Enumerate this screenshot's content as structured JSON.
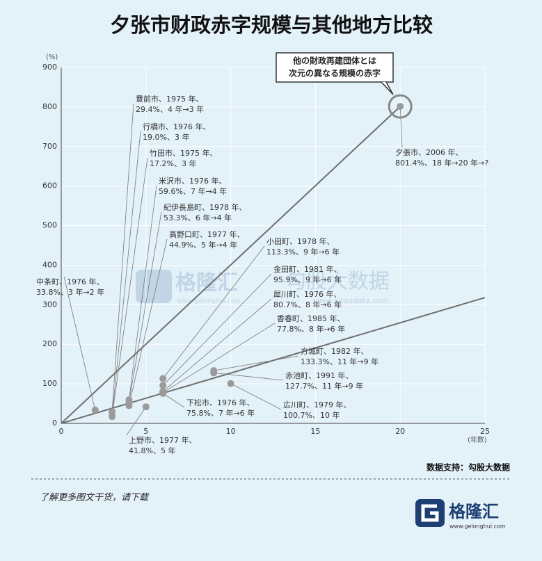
{
  "chart_data": {
    "type": "scatter",
    "title": "夕张市财政赤字规模与其他地方比较",
    "y_label": "(%)",
    "x_label": "(年数)",
    "xlim": [
      0,
      25
    ],
    "ylim": [
      0,
      900
    ],
    "xticks": [
      0,
      5,
      10,
      15,
      20,
      25
    ],
    "yticks": [
      0,
      100,
      200,
      300,
      400,
      500,
      600,
      700,
      800,
      900
    ],
    "grid": true,
    "color": "#9a9a9a",
    "line_color": "#6e6e6e",
    "lines": [
      {
        "x": [
          0,
          20
        ],
        "y": [
          0,
          801.4
        ]
      },
      {
        "x": [
          0,
          25
        ],
        "y": [
          0,
          318
        ]
      }
    ],
    "callout": [
      "他の財政再建団体とは",
      "次元の異なる規模の赤字"
    ],
    "points": [
      {
        "label": [
          "豊前市、1975 年、",
          "29.4%、4 年→3 年"
        ],
        "x": 3,
        "y": 29.4
      },
      {
        "label": [
          "行橋市、1976 年、",
          "19.0%、3 年"
        ],
        "x": 3,
        "y": 19.0
      },
      {
        "label": [
          "竹田市、1975 年、",
          "17.2%、3 年"
        ],
        "x": 3,
        "y": 17.2
      },
      {
        "label": [
          "米沢市、1976 年、",
          "59.6%、7 年→4 年"
        ],
        "x": 4,
        "y": 59.6
      },
      {
        "label": [
          "紀伊長島町、1978 年、",
          "53.3%、6 年→4 年"
        ],
        "x": 4,
        "y": 53.3
      },
      {
        "label": [
          "高野口町、1977 年、",
          "44.9%、5 年→4 年"
        ],
        "x": 4,
        "y": 44.9
      },
      {
        "label": [
          "小田町、1978 年、",
          "113.3%、9 年→6 年"
        ],
        "x": 6,
        "y": 113.3
      },
      {
        "label": [
          "金田町、1981 年、",
          "95.9%、9 年→6 年"
        ],
        "x": 6,
        "y": 95.9
      },
      {
        "label": [
          "犀川町、1976 年、",
          "80.7%、8 年→6 年"
        ],
        "x": 6,
        "y": 80.7
      },
      {
        "label": [
          "香春町、1985 年、",
          "77.8%、8 年→6 年"
        ],
        "x": 6,
        "y": 77.8
      },
      {
        "label": [
          "方城町、1982 年、",
          "133.3%、11 年→9 年"
        ],
        "x": 9,
        "y": 133.3
      },
      {
        "label": [
          "赤池町、1991 年、",
          "127.7%、11 年→9 年"
        ],
        "x": 9,
        "y": 127.7
      },
      {
        "label": [
          "広川町、1979 年、",
          "100.7%、10 年"
        ],
        "x": 10,
        "y": 100.7
      },
      {
        "label": [
          "下松市、1976 年、",
          "75.8%、7 年→6 年"
        ],
        "x": 6,
        "y": 75.8
      },
      {
        "label": [
          "上野市、1977 年、",
          "41.8%、5 年"
        ],
        "x": 5,
        "y": 41.8
      },
      {
        "label": [
          "中条町、1976 年、",
          "33.8%、3 年→2 年"
        ],
        "x": 2,
        "y": 33.8
      },
      {
        "label": [
          "夕張市、2006 年、",
          "801.4%、18 年→20 年→?"
        ],
        "x": 20,
        "y": 801.4
      }
    ]
  },
  "source": "数据支持：勾股大数据",
  "watermark": [
    "格隆汇",
    "www.gelonghui.com",
    "勾股大数据",
    "www.gogudata.com"
  ],
  "footer": {
    "cta": "了解更多图文干货，请下载",
    "brand": "格隆汇",
    "url": "www.gelonghui.com"
  }
}
